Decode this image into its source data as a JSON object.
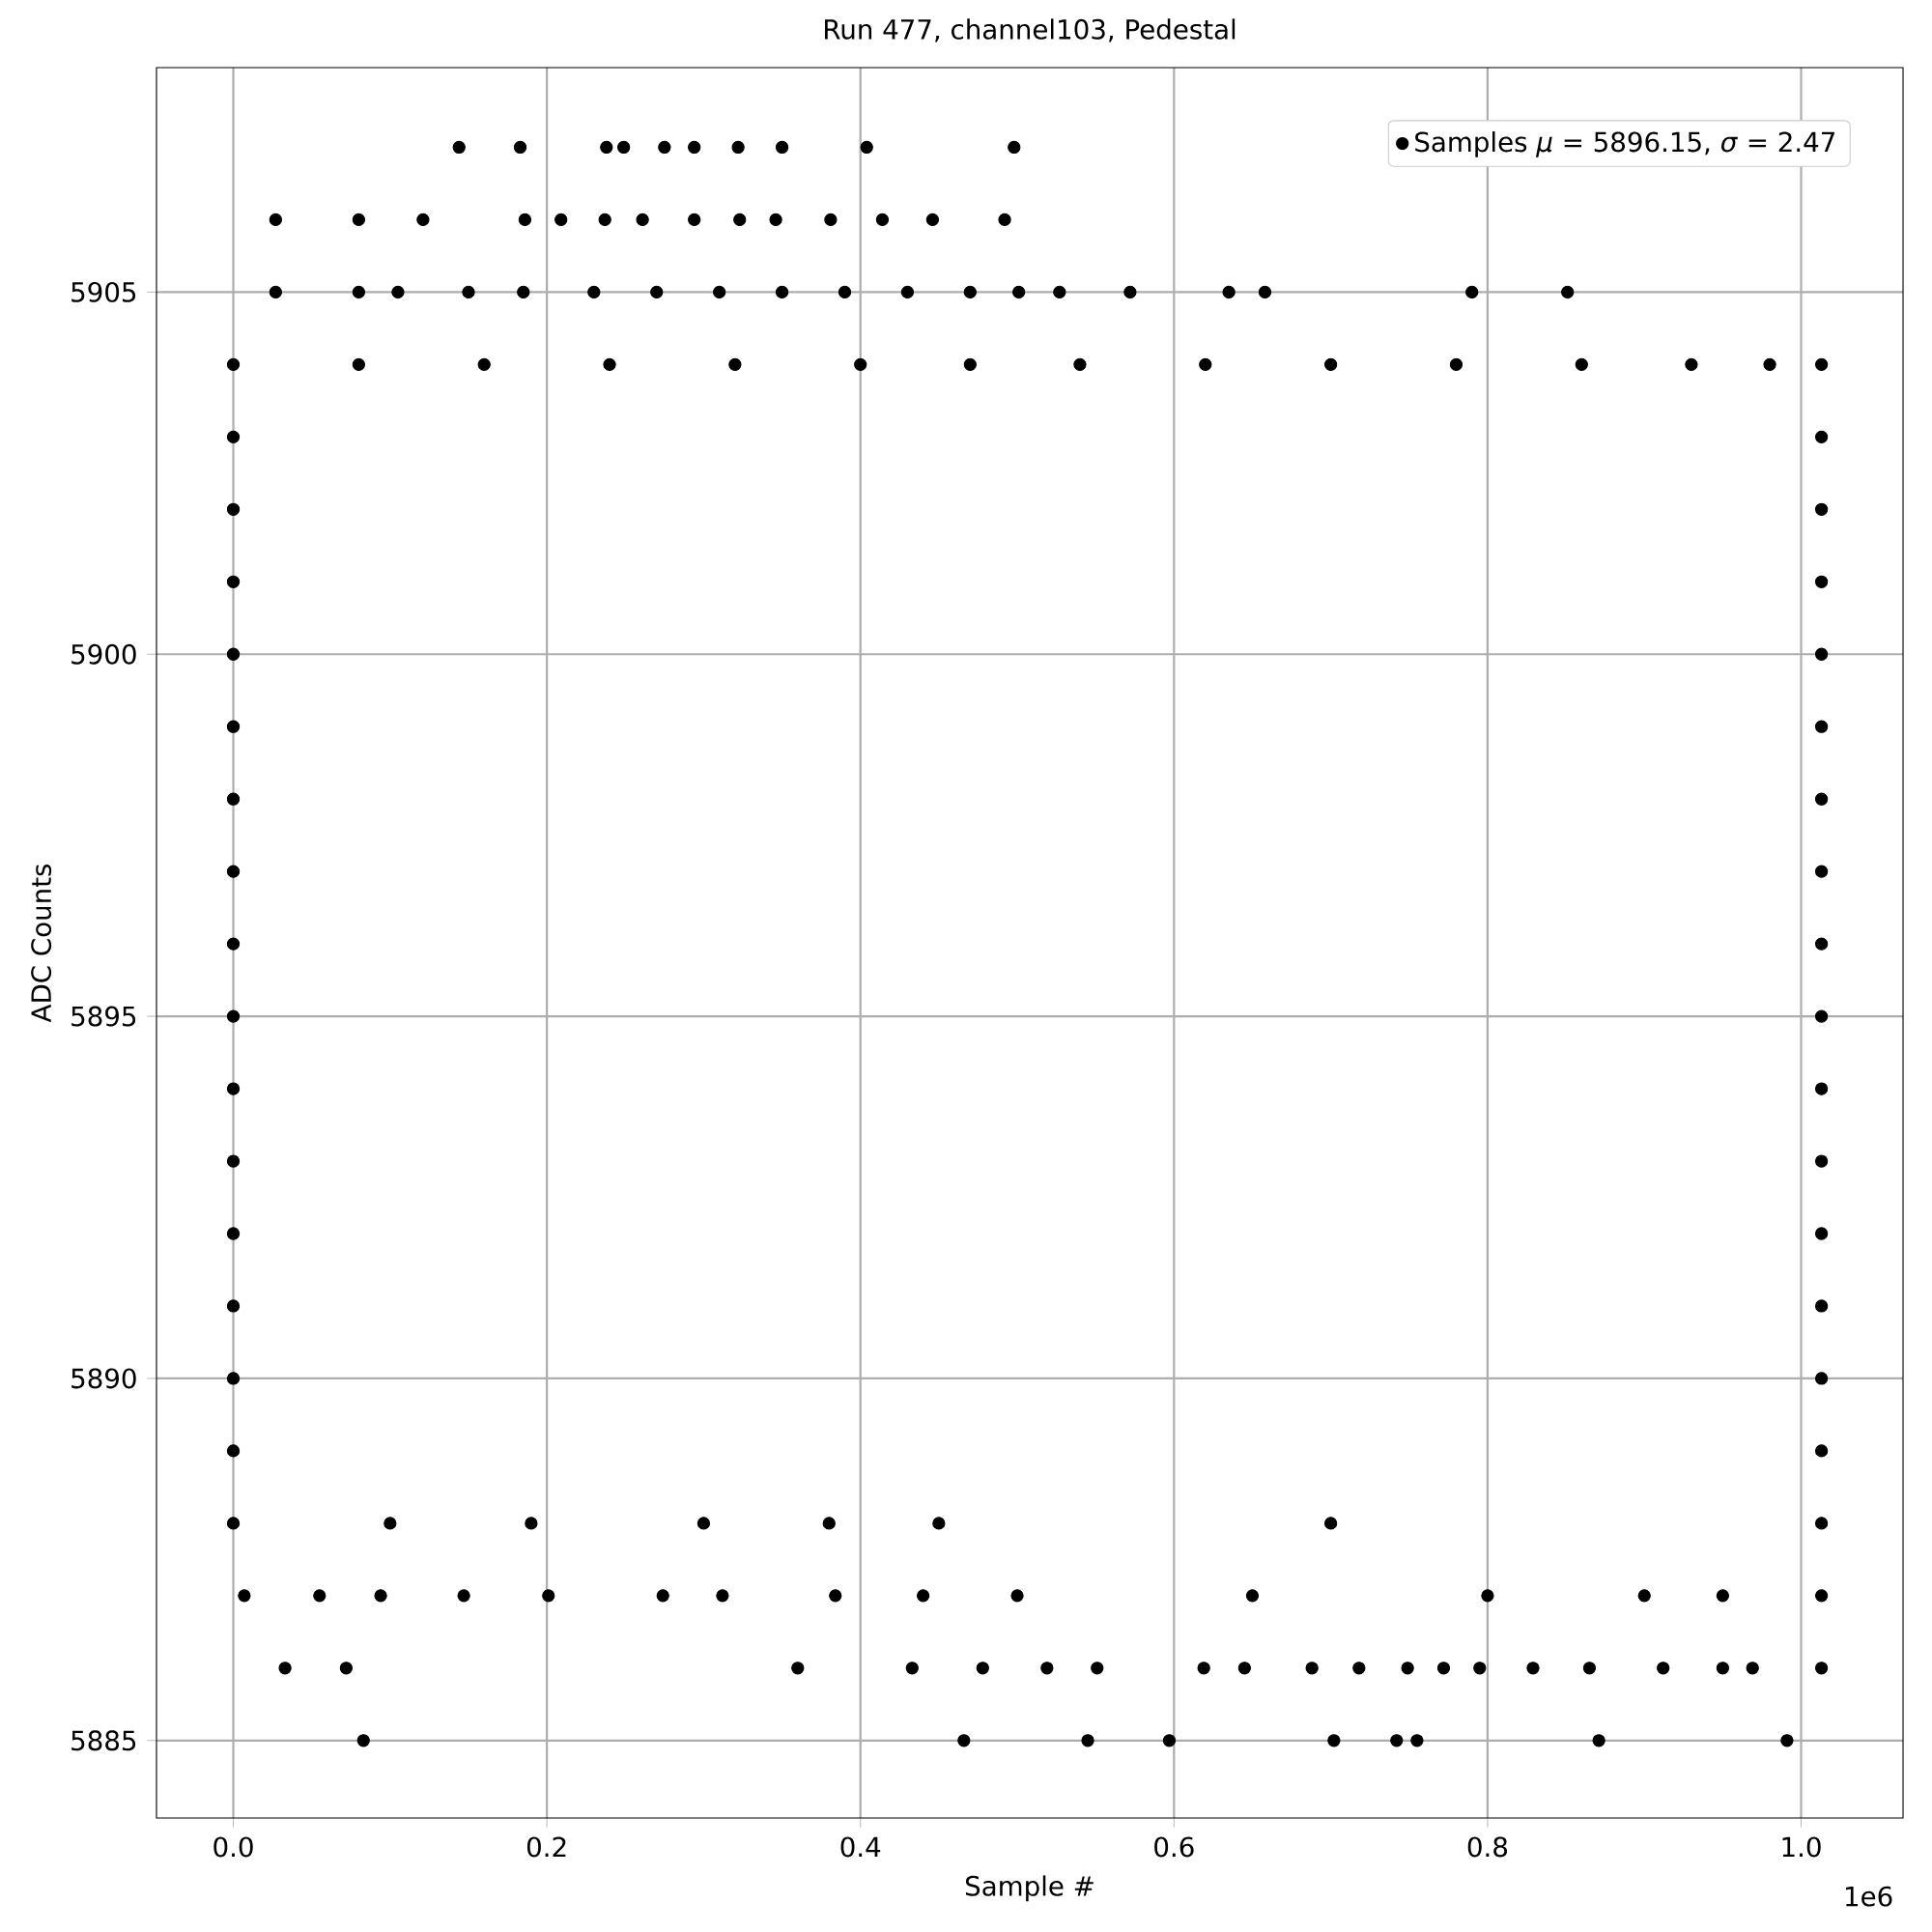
{
  "chart_data": {
    "type": "scatter",
    "title": "Run 477, channel103, Pedestal",
    "xlabel": "Sample #",
    "ylabel": "ADC Counts",
    "annotations": [
      "1e6"
    ],
    "xlim": [
      -0.049,
      1.065
    ],
    "ylim": [
      5883.93,
      5908.1
    ],
    "xticks": [
      {
        "value": 0,
        "label": "0.0"
      },
      0.2,
      0.4,
      0.6,
      0.8,
      {
        "value": 1,
        "label": "1.0"
      }
    ],
    "yticks": [
      5885,
      5890,
      5895,
      5900,
      5905
    ],
    "grid": true,
    "legend": "top right",
    "marker": "circle",
    "series": [
      {
        "name": "Samples *μ* = 5896.15, *σ* = 2.47",
        "color": "#000000",
        "x": [
          0.144,
          0.183,
          0.238,
          0.249,
          0.275,
          0.294,
          0.322,
          0.35,
          0.404,
          0.498,
          0.027,
          0.08,
          0.121,
          0.186,
          0.209,
          0.237,
          0.261,
          0.294,
          0.323,
          0.346,
          0.381,
          0.414,
          0.446,
          0.492,
          0.027,
          0.08,
          0.105,
          0.15,
          0.185,
          0.23,
          0.27,
          0.31,
          0.35,
          0.39,
          0.43,
          0.47,
          0.501,
          0.527,
          0.572,
          0.635,
          0.658,
          0.79,
          0.851,
          0,
          0.08,
          0.16,
          0.24,
          0.32,
          0.4,
          0.47,
          0.54,
          0.62,
          0.7,
          0.78,
          0.86,
          0.93,
          0.98,
          1.013,
          0,
          1.013,
          0,
          1.013,
          0,
          1.013,
          0,
          1.013,
          0,
          1.013,
          0,
          1.013,
          0,
          1.013,
          0,
          1.013,
          0,
          1.013,
          0,
          1.013,
          0,
          1.013,
          0,
          1.013,
          0,
          1.013,
          0,
          1.013,
          0,
          1.013,
          0,
          0.1,
          0.19,
          0.3,
          0.38,
          0.45,
          0.7,
          1.013,
          0.007,
          0.055,
          0.094,
          0.147,
          0.201,
          0.274,
          0.312,
          0.384,
          0.44,
          0.5,
          0.65,
          0.8,
          0.9,
          0.95,
          1.013,
          0.033,
          0.072,
          0.36,
          0.433,
          0.478,
          0.519,
          0.551,
          0.619,
          0.645,
          0.688,
          0.718,
          0.749,
          0.772,
          0.795,
          0.829,
          0.865,
          0.912,
          0.95,
          0.969,
          1.013,
          0.083,
          0.466,
          0.545,
          0.597,
          0.702,
          0.742,
          0.755,
          0.871,
          0.991
        ],
        "values": [
          5907,
          5907,
          5907,
          5907,
          5907,
          5907,
          5907,
          5907,
          5907,
          5907,
          5906,
          5906,
          5906,
          5906,
          5906,
          5906,
          5906,
          5906,
          5906,
          5906,
          5906,
          5906,
          5906,
          5906,
          5905,
          5905,
          5905,
          5905,
          5905,
          5905,
          5905,
          5905,
          5905,
          5905,
          5905,
          5905,
          5905,
          5905,
          5905,
          5905,
          5905,
          5905,
          5905,
          5904,
          5904,
          5904,
          5904,
          5904,
          5904,
          5904,
          5904,
          5904,
          5904,
          5904,
          5904,
          5904,
          5904,
          5904,
          5903,
          5903,
          5902,
          5902,
          5901,
          5901,
          5900,
          5900,
          5899,
          5899,
          5898,
          5898,
          5897,
          5897,
          5896,
          5896,
          5895,
          5895,
          5894,
          5894,
          5893,
          5893,
          5892,
          5892,
          5891,
          5891,
          5890,
          5890,
          5889,
          5889,
          5888,
          5888,
          5888,
          5888,
          5888,
          5888,
          5888,
          5888,
          5887,
          5887,
          5887,
          5887,
          5887,
          5887,
          5887,
          5887,
          5887,
          5887,
          5887,
          5887,
          5887,
          5887,
          5887,
          5886,
          5886,
          5886,
          5886,
          5886,
          5886,
          5886,
          5886,
          5886,
          5886,
          5886,
          5886,
          5886,
          5886,
          5886,
          5886,
          5886,
          5886,
          5886,
          5886,
          5885,
          5885,
          5885,
          5885,
          5885,
          5885,
          5885,
          5885,
          5885
        ]
      }
    ]
  }
}
